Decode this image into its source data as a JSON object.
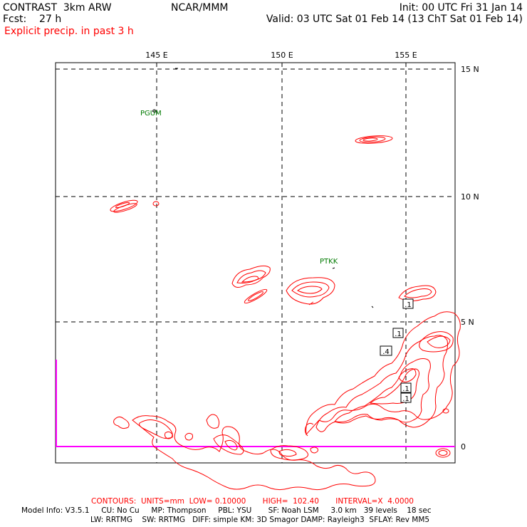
{
  "header": {
    "model": "CONTRAST  3km ARW",
    "fcst": "Fcst:    27 h",
    "org": "NCAR/MMM",
    "init": "Init: 00 UTC Fri 31 Jan 14",
    "valid": "Valid: 03 UTC Sat 01 Feb 14 (13 ChT Sat 01 Feb 14)",
    "field": "Explicit precip. in past 3 h"
  },
  "map": {
    "lon_labels": [
      "145 E",
      "150 E",
      "155 E"
    ],
    "lat_labels": [
      "15 N",
      "10 N",
      "5 N",
      "0"
    ],
    "stations": [
      {
        "id": "PGUM",
        "label": "PGUM"
      },
      {
        "id": "PTKK",
        "label": "PTKK"
      }
    ],
    "contour_labels": [
      ".1",
      ".1",
      ".4",
      ".1",
      ".1"
    ],
    "colors": {
      "contour": "#ff0000",
      "grid": "#000000",
      "station": "#007a00",
      "boundary": "#ff00ff"
    }
  },
  "footer": {
    "contours": "CONTOURS:  UNITS=mm  LOW= 0.10000       HIGH=  102.40       INTERVAL=X  4.0000",
    "model_info": "Model Info: V3.5.1     CU: No Cu     MP: Thompson     PBL: YSU       SF: Noah LSM     3.0 km   39 levels    18 sec",
    "model_info2": "LW: RRTMG    SW: RRTMG   DIFF: simple KM: 3D Smagor DAMP: Rayleigh3  SFLAY: Rev MM5"
  }
}
